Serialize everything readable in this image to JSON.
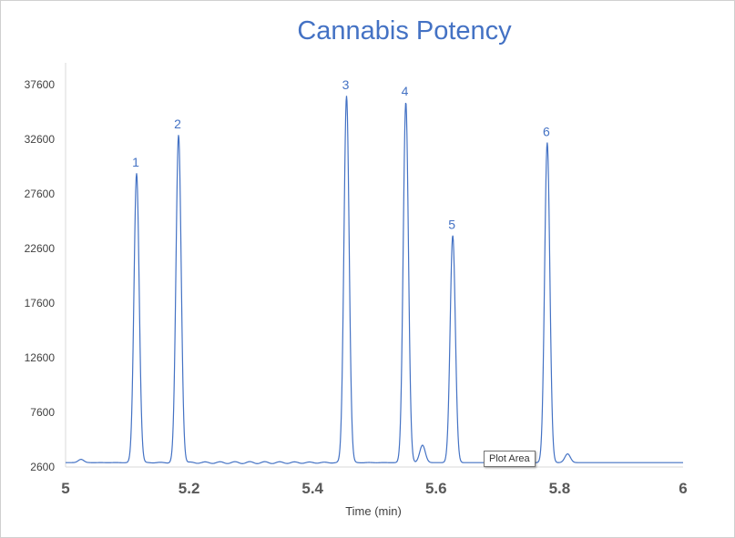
{
  "chart_data": {
    "type": "line",
    "title": "Cannabis Potency",
    "xlabel": "Time (min)",
    "ylabel": "",
    "xlim": [
      5,
      6
    ],
    "ylim": [
      2600,
      39600
    ],
    "x_ticks": [
      "5",
      "5.2",
      "5.4",
      "5.6",
      "5.8",
      "6"
    ],
    "y_ticks": [
      "2600",
      "7600",
      "12600",
      "17600",
      "22600",
      "27600",
      "32600",
      "37600"
    ],
    "grid": false,
    "legend": "none",
    "line_color": "#4472c4",
    "baseline": 3000,
    "minor_bumps": [
      {
        "x": 5.025,
        "y": 3300
      },
      {
        "x": 5.578,
        "y": 4600
      },
      {
        "x": 5.813,
        "y": 3800
      }
    ],
    "peaks": [
      {
        "label": "1",
        "x": 5.115,
        "y": 29500
      },
      {
        "label": "2",
        "x": 5.183,
        "y": 33000
      },
      {
        "label": "3",
        "x": 5.455,
        "y": 36600
      },
      {
        "label": "4",
        "x": 5.551,
        "y": 36000
      },
      {
        "label": "5",
        "x": 5.627,
        "y": 23800
      },
      {
        "label": "6",
        "x": 5.78,
        "y": 32300
      }
    ]
  },
  "tooltip": "Plot Area"
}
